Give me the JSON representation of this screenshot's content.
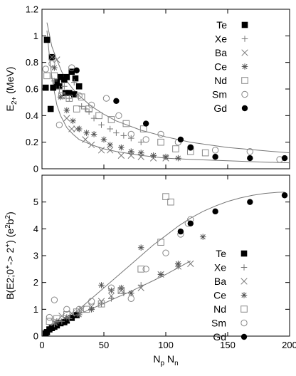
{
  "chart_data": [
    {
      "type": "scatter",
      "title": "",
      "xlabel": "",
      "ylabel": "E_2+ (MeV)",
      "xlim": [
        0,
        200
      ],
      "ylim": [
        0,
        1.2
      ],
      "x_ticks": [],
      "y_ticks": [
        "0",
        "0.2",
        "0.4",
        "0.6",
        "0.8",
        "1",
        "1.2"
      ],
      "y_tick_values": [
        0,
        0.2,
        0.4,
        0.6,
        0.8,
        1.0,
        1.2
      ],
      "legend_position": "top-right",
      "series": [
        {
          "name": "Te",
          "marker": "filled-square",
          "points": [
            [
              4,
              0.97
            ],
            [
              7,
              0.45
            ],
            [
              8,
              0.84
            ],
            [
              9,
              0.61
            ],
            [
              12,
              0.65
            ],
            [
              14,
              0.62
            ],
            [
              15,
              0.69
            ],
            [
              18,
              0.67
            ],
            [
              19,
              0.57
            ],
            [
              20,
              0.69
            ],
            [
              22,
              0.57
            ],
            [
              24,
              0.73
            ],
            [
              26,
              0.56
            ],
            [
              27,
              0.68
            ],
            [
              30,
              0.62
            ],
            [
              3,
              0.61
            ]
          ]
        },
        {
          "name": "Xe",
          "marker": "plus",
          "points": [
            [
              10,
              0.66
            ],
            [
              14,
              0.6
            ],
            [
              18,
              0.62
            ],
            [
              22,
              0.53
            ],
            [
              26,
              0.65
            ],
            [
              32,
              0.47
            ],
            [
              35,
              0.45
            ],
            [
              38,
              0.43
            ],
            [
              42,
              0.38
            ],
            [
              48,
              0.33
            ],
            [
              55,
              0.3
            ],
            [
              60,
              0.27
            ],
            [
              66,
              0.25
            ],
            [
              72,
              0.23
            ],
            [
              80,
              0.2
            ]
          ]
        },
        {
          "name": "Ba",
          "marker": "cross",
          "points": [
            [
              8,
              0.84
            ],
            [
              12,
              0.82
            ],
            [
              16,
              0.55
            ],
            [
              20,
              0.38
            ],
            [
              24,
              0.3
            ],
            [
              28,
              0.3
            ],
            [
              35,
              0.22
            ],
            [
              40,
              0.18
            ],
            [
              48,
              0.14
            ],
            [
              55,
              0.14
            ],
            [
              64,
              0.1
            ],
            [
              72,
              0.1
            ],
            [
              80,
              0.09
            ],
            [
              90,
              0.08
            ],
            [
              100,
              0.08
            ]
          ]
        },
        {
          "name": "Ce",
          "marker": "asterisk",
          "points": [
            [
              10,
              0.76
            ],
            [
              15,
              0.54
            ],
            [
              20,
              0.44
            ],
            [
              25,
              0.36
            ],
            [
              30,
              0.3
            ],
            [
              36,
              0.27
            ],
            [
              42,
              0.26
            ],
            [
              50,
              0.22
            ],
            [
              55,
              0.18
            ],
            [
              64,
              0.16
            ],
            [
              72,
              0.13
            ],
            [
              80,
              0.12
            ],
            [
              90,
              0.1
            ],
            [
              100,
              0.09
            ],
            [
              110,
              0.08
            ]
          ]
        },
        {
          "name": "Nd",
          "marker": "open-square",
          "points": [
            [
              4,
              0.7
            ],
            [
              10,
              0.7
            ],
            [
              16,
              0.55
            ],
            [
              22,
              0.53
            ],
            [
              28,
              0.45
            ],
            [
              32,
              0.54
            ],
            [
              38,
              0.45
            ],
            [
              46,
              0.4
            ],
            [
              56,
              0.37
            ],
            [
              68,
              0.34
            ],
            [
              82,
              0.3
            ],
            [
              96,
              0.2
            ],
            [
              108,
              0.15
            ],
            [
              120,
              0.13
            ],
            [
              132,
              0.12
            ]
          ]
        },
        {
          "name": "Sm",
          "marker": "open-circle",
          "points": [
            [
              3,
              0.75
            ],
            [
              8,
              0.79
            ],
            [
              14,
              0.33
            ],
            [
              24,
              0.76
            ],
            [
              30,
              0.55
            ],
            [
              40,
              0.48
            ],
            [
              52,
              0.53
            ],
            [
              62,
              0.4
            ],
            [
              72,
              0.26
            ],
            [
              84,
              0.22
            ],
            [
              96,
              0.26
            ],
            [
              110,
              0.2
            ],
            [
              120,
              0.16
            ],
            [
              140,
              0.14
            ],
            [
              168,
              0.13
            ],
            [
              192,
              0.07
            ]
          ]
        },
        {
          "name": "Gd",
          "marker": "filled-circle",
          "points": [
            [
              28,
              0.74
            ],
            [
              60,
              0.51
            ],
            [
              84,
              0.34
            ],
            [
              112,
              0.22
            ],
            [
              120,
              0.16
            ],
            [
              140,
              0.09
            ],
            [
              168,
              0.08
            ],
            [
              196,
              0.08
            ]
          ]
        }
      ],
      "curves": [
        {
          "points": [
            [
              4,
              1.1
            ],
            [
              8,
              0.92
            ],
            [
              12,
              0.82
            ],
            [
              16,
              0.73
            ],
            [
              20,
              0.66
            ],
            [
              25,
              0.6
            ],
            [
              30,
              0.55
            ],
            [
              40,
              0.47
            ],
            [
              50,
              0.41
            ],
            [
              60,
              0.36
            ],
            [
              80,
              0.29
            ],
            [
              100,
              0.24
            ],
            [
              120,
              0.2
            ],
            [
              150,
              0.16
            ],
            [
              180,
              0.135
            ],
            [
              200,
              0.12
            ]
          ]
        },
        {
          "points": [
            [
              4,
              1.04
            ],
            [
              6,
              0.85
            ],
            [
              8,
              0.69
            ],
            [
              10,
              0.58
            ],
            [
              12,
              0.48
            ],
            [
              15,
              0.4
            ],
            [
              20,
              0.31
            ],
            [
              25,
              0.26
            ],
            [
              30,
              0.22
            ],
            [
              40,
              0.18
            ],
            [
              50,
              0.15
            ],
            [
              60,
              0.13
            ],
            [
              80,
              0.1
            ],
            [
              100,
              0.08
            ],
            [
              120,
              0.07
            ],
            [
              150,
              0.06
            ],
            [
              180,
              0.05
            ],
            [
              200,
              0.045
            ]
          ]
        }
      ]
    },
    {
      "type": "scatter",
      "title": "",
      "xlabel": "N_p N_n",
      "ylabel": "B(E2;0+->2+) (e2b2)",
      "xlim": [
        0,
        200
      ],
      "ylim": [
        0,
        6
      ],
      "x_ticks": [
        "0",
        "50",
        "100",
        "150",
        "200"
      ],
      "x_tick_values": [
        0,
        50,
        100,
        150,
        200
      ],
      "y_ticks": [
        "0",
        "1",
        "2",
        "3",
        "4",
        "5"
      ],
      "y_tick_values": [
        0,
        1,
        2,
        3,
        4,
        5
      ],
      "legend_position": "bottom-right",
      "series": [
        {
          "name": "Te",
          "marker": "filled-square",
          "points": [
            [
              4,
              0.15
            ],
            [
              6,
              0.25
            ],
            [
              8,
              0.3
            ],
            [
              10,
              0.35
            ],
            [
              12,
              0.4
            ],
            [
              15,
              0.48
            ],
            [
              18,
              0.52
            ],
            [
              20,
              0.58
            ],
            [
              24,
              0.68
            ],
            [
              28,
              0.78
            ],
            [
              3,
              0.1
            ]
          ]
        },
        {
          "name": "Xe",
          "marker": "plus",
          "points": [
            [
              10,
              0.45
            ],
            [
              16,
              0.55
            ],
            [
              22,
              0.65
            ],
            [
              30,
              0.9
            ],
            [
              40,
              1.0
            ],
            [
              48,
              1.2
            ],
            [
              56,
              1.4
            ],
            [
              66,
              1.6
            ],
            [
              80,
              1.9
            ],
            [
              96,
              2.3
            ],
            [
              110,
              2.6
            ]
          ]
        },
        {
          "name": "Ba",
          "marker": "cross",
          "points": [
            [
              10,
              0.5
            ],
            [
              16,
              0.75
            ],
            [
              24,
              0.85
            ],
            [
              32,
              1.0
            ],
            [
              40,
              1.1
            ],
            [
              48,
              1.3
            ],
            [
              56,
              1.5
            ],
            [
              64,
              1.7
            ],
            [
              80,
              1.8
            ],
            [
              96,
              2.3
            ],
            [
              110,
              2.6
            ],
            [
              120,
              2.7
            ]
          ]
        },
        {
          "name": "Ce",
          "marker": "asterisk",
          "points": [
            [
              12,
              0.55
            ],
            [
              20,
              0.7
            ],
            [
              30,
              0.8
            ],
            [
              40,
              1.0
            ],
            [
              48,
              1.9
            ],
            [
              56,
              1.7
            ],
            [
              64,
              1.8
            ],
            [
              72,
              1.6
            ],
            [
              80,
              3.3
            ],
            [
              96,
              2.3
            ],
            [
              110,
              2.7
            ],
            [
              130,
              3.7
            ]
          ]
        },
        {
          "name": "Nd",
          "marker": "open-square",
          "points": [
            [
              6,
              0.55
            ],
            [
              12,
              0.65
            ],
            [
              20,
              0.8
            ],
            [
              28,
              0.9
            ],
            [
              36,
              1.0
            ],
            [
              48,
              1.2
            ],
            [
              64,
              1.7
            ],
            [
              80,
              2.5
            ],
            [
              96,
              3.5
            ],
            [
              100,
              5.2
            ],
            [
              104,
              5.0
            ]
          ]
        },
        {
          "name": "Sm",
          "marker": "open-circle",
          "points": [
            [
              6,
              0.7
            ],
            [
              10,
              1.35
            ],
            [
              20,
              1.0
            ],
            [
              30,
              1.0
            ],
            [
              40,
              1.3
            ],
            [
              56,
              1.8
            ],
            [
              72,
              1.4
            ],
            [
              84,
              2.5
            ],
            [
              100,
              3.1
            ],
            [
              112,
              3.8
            ],
            [
              118,
              4.2
            ],
            [
              120,
              4.35
            ]
          ]
        },
        {
          "name": "Gd",
          "marker": "filled-circle",
          "points": [
            [
              112,
              3.9
            ],
            [
              120,
              4.2
            ],
            [
              140,
              4.65
            ],
            [
              168,
              5.0
            ],
            [
              196,
              5.25
            ]
          ]
        }
      ],
      "curves": [
        {
          "points": [
            [
              10,
              0.42
            ],
            [
              20,
              0.62
            ],
            [
              30,
              0.82
            ],
            [
              40,
              1.02
            ],
            [
              50,
              1.22
            ],
            [
              60,
              1.43
            ],
            [
              70,
              1.63
            ],
            [
              80,
              1.85
            ],
            [
              90,
              2.07
            ],
            [
              100,
              2.3
            ],
            [
              110,
              2.55
            ],
            [
              120,
              2.8
            ]
          ]
        },
        {
          "points": [
            [
              2,
              0.08
            ],
            [
              10,
              0.3
            ],
            [
              20,
              0.65
            ],
            [
              30,
              1.0
            ],
            [
              40,
              1.4
            ],
            [
              50,
              1.8
            ],
            [
              60,
              2.2
            ],
            [
              70,
              2.6
            ],
            [
              80,
              3.0
            ],
            [
              90,
              3.4
            ],
            [
              100,
              3.75
            ],
            [
              110,
              4.1
            ],
            [
              120,
              4.4
            ],
            [
              130,
              4.65
            ],
            [
              140,
              4.85
            ],
            [
              150,
              5.02
            ],
            [
              160,
              5.15
            ],
            [
              170,
              5.25
            ],
            [
              180,
              5.32
            ],
            [
              190,
              5.36
            ],
            [
              196,
              5.37
            ]
          ]
        }
      ]
    }
  ]
}
